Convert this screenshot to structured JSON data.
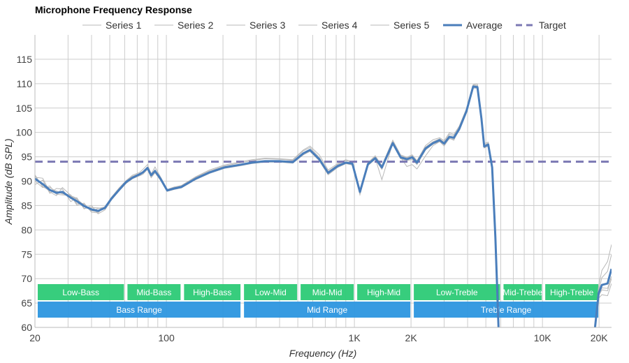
{
  "chart_data": {
    "type": "line",
    "title": "Microphone Frequency Response",
    "xlabel": "Frequency (Hz)",
    "ylabel": "Amplitude (dB SPL)",
    "xscale": "log",
    "xlim": [
      20,
      23300
    ],
    "ylim": [
      60,
      120
    ],
    "grid": true,
    "legend_position": "top",
    "x_ticks": [
      {
        "value": 20,
        "label": "20"
      },
      {
        "value": 100,
        "label": "100"
      },
      {
        "value": 1000,
        "label": "1K"
      },
      {
        "value": 2000,
        "label": "2K"
      },
      {
        "value": 10000,
        "label": "10K"
      },
      {
        "value": 20000,
        "label": "20K"
      }
    ],
    "x_minor_grid": [
      30,
      40,
      50,
      60,
      70,
      80,
      90,
      200,
      300,
      400,
      500,
      600,
      700,
      800,
      900,
      3000,
      4000,
      5000,
      6000,
      7000,
      8000,
      9000
    ],
    "y_ticks": [
      60,
      65,
      70,
      75,
      80,
      85,
      90,
      95,
      100,
      105,
      110,
      115
    ],
    "legend": [
      {
        "name": "Series 1",
        "style": "thin-gray"
      },
      {
        "name": "Series 2",
        "style": "thin-gray"
      },
      {
        "name": "Series 3",
        "style": "thin-gray"
      },
      {
        "name": "Series 4",
        "style": "thin-gray"
      },
      {
        "name": "Series 5",
        "style": "thin-gray"
      },
      {
        "name": "Average",
        "style": "thick-blue"
      },
      {
        "name": "Target",
        "style": "dashed-purple"
      }
    ],
    "colors": {
      "series": "#b8b8b8",
      "average": "#4a7ebb",
      "target": "#7b78b3",
      "grid": "#cccccc",
      "band_green": "#33cc7a",
      "band_blue": "#3399e0"
    },
    "target_level": 94,
    "average": {
      "x": [
        20,
        22,
        24,
        26,
        28,
        31,
        33.4,
        36.5,
        40,
        43.3,
        47.1,
        51,
        56,
        61,
        66,
        72,
        75,
        79.3,
        83,
        87,
        93,
        101,
        110,
        120,
        143,
        170,
        203,
        250,
        284,
        334,
        399,
        470,
        535,
        580,
        650,
        725,
        815,
        900,
        975,
        1070,
        1180,
        1290,
        1400,
        1600,
        1760,
        1900,
        2030,
        2150,
        2390,
        2620,
        2840,
        3000,
        3200,
        3380,
        3610,
        3940,
        4280,
        4510,
        4740,
        4900,
        5150,
        5400,
        5620,
        5860,
        18800,
        19900,
        20700,
        22200,
        23300
      ],
      "y": [
        90.5,
        89.4,
        88.2,
        87.6,
        87.8,
        86.6,
        85.9,
        84.9,
        84.2,
        83.9,
        84.5,
        86.4,
        88.2,
        89.8,
        90.7,
        91.4,
        91.8,
        92.7,
        91.2,
        92.1,
        90.5,
        88.1,
        88.5,
        88.8,
        90.5,
        91.8,
        92.8,
        93.4,
        93.8,
        94.1,
        94.1,
        93.9,
        95.7,
        96.4,
        94.5,
        91.7,
        93.1,
        93.8,
        93.6,
        87.8,
        93.5,
        94.7,
        92.8,
        97.8,
        94.9,
        94.5,
        94.9,
        93.8,
        96.7,
        97.8,
        98.4,
        97.7,
        99.1,
        98.9,
        100.7,
        104.3,
        109.4,
        109.3,
        102.8,
        97.1,
        97.5,
        92.8,
        78.5,
        58.4,
        58,
        67,
        68.7,
        69.0,
        72
      ]
    },
    "series": [
      {
        "name": "Series 1",
        "offsets": [
          0.8,
          -0.6,
          0.5,
          0.3,
          -0.4,
          0.6,
          -0.5,
          0.4,
          -0.3,
          0.5,
          0.2,
          0.3,
          0.4,
          0.3,
          0.5,
          0.4,
          0.6,
          0.7,
          0.3,
          0.8,
          0.4,
          0.2,
          0.3,
          0.3,
          0.4,
          0.5,
          0.5,
          0.6,
          0.6,
          0.6,
          0.5,
          0.5,
          0.7,
          0.8,
          0.9,
          0.6,
          0.5,
          0.6,
          0.4,
          -0.4,
          0.3,
          0.5,
          0.4,
          0.6,
          0.5,
          0.4,
          0.5,
          0.4,
          0.6,
          0.7,
          0.5,
          0.6,
          0.8,
          0.7,
          0.6,
          0.5,
          0.4,
          0.6,
          0.5,
          0.6,
          0.5,
          0.4,
          0.5,
          0.5,
          0.5,
          1.5,
          3.0,
          4.5,
          5.0
        ]
      },
      {
        "name": "Series 2",
        "offsets": [
          -1.2,
          0.8,
          -0.7,
          0.9,
          0.6,
          -0.8,
          0.7,
          -0.6,
          0.8,
          -0.6,
          -0.4,
          -0.3,
          -0.2,
          -0.3,
          -0.2,
          -0.3,
          -0.4,
          -0.3,
          -0.5,
          -0.4,
          -0.3,
          -0.2,
          -0.2,
          -0.2,
          -0.2,
          -0.2,
          -0.2,
          -0.2,
          -0.2,
          -0.2,
          -0.2,
          -0.2,
          -0.3,
          -0.3,
          -0.3,
          -0.4,
          -0.3,
          -0.2,
          -0.3,
          -0.6,
          -0.3,
          -0.2,
          -0.4,
          -0.2,
          -0.3,
          -0.3,
          -0.4,
          -0.4,
          -0.3,
          -0.2,
          -0.3,
          -0.2,
          -0.4,
          -0.3,
          -0.3,
          -0.3,
          -0.3,
          -0.3,
          -0.3,
          -0.3,
          -0.3,
          -0.3,
          -0.3,
          -0.3,
          -0.3,
          0.5,
          1.5,
          2.5,
          3.0
        ]
      },
      {
        "name": "Series 3",
        "offsets": [
          0.3,
          1.2,
          -0.4,
          -0.6,
          0.9,
          0.5,
          -0.8,
          0.6,
          -0.6,
          -0.4,
          0.3,
          0.2,
          0.3,
          0.2,
          0.3,
          0.2,
          0.1,
          0.2,
          0.2,
          0.1,
          0.2,
          0.1,
          0.2,
          0.2,
          0.3,
          0.3,
          0.3,
          0.4,
          0.4,
          0.5,
          0.4,
          0.4,
          0.5,
          0.5,
          0.4,
          0.3,
          0.3,
          0.4,
          0.3,
          -0.2,
          0.2,
          0.3,
          0.2,
          0.3,
          0.3,
          0.3,
          0.3,
          0.2,
          0.3,
          0.3,
          0.3,
          0.3,
          0.5,
          0.4,
          0.4,
          0.4,
          0.3,
          0.3,
          0.3,
          0.3,
          0.3,
          0.3,
          0.3,
          0.3,
          0.3,
          -0.5,
          -1.0,
          -1.5,
          -2.0
        ]
      },
      {
        "name": "Series 4",
        "offsets": [
          -0.5,
          -0.7,
          0.8,
          -0.3,
          -0.6,
          0.4,
          0.6,
          -0.5,
          0.4,
          0.6,
          -0.2,
          -0.1,
          -0.1,
          -0.1,
          -0.1,
          -0.2,
          -0.1,
          -0.1,
          -0.2,
          -0.1,
          -0.1,
          -0.1,
          -0.1,
          -0.1,
          -0.1,
          -0.1,
          -0.1,
          -0.1,
          -0.1,
          -0.1,
          -0.1,
          -0.1,
          -0.1,
          -0.1,
          -0.1,
          -0.2,
          -0.1,
          -0.1,
          -0.1,
          -0.2,
          -0.1,
          -0.1,
          -0.1,
          -0.1,
          -0.1,
          -0.1,
          -0.1,
          -0.1,
          -0.1,
          -0.1,
          -0.1,
          -0.1,
          -0.1,
          -0.1,
          -0.1,
          -0.1,
          -0.1,
          -0.1,
          -0.1,
          -0.1,
          -0.1,
          -0.1,
          -0.1,
          -0.1,
          -0.1,
          -1.0,
          -2.0,
          -2.5,
          -3.0
        ]
      },
      {
        "name": "Series 5",
        "offsets": [
          0.6,
          -0.5,
          -0.2,
          0.4,
          -0.3,
          0.3,
          0.4,
          0.2,
          -0.3,
          -0.2,
          0.1,
          0.1,
          0.0,
          0.1,
          0.0,
          0.1,
          0.1,
          0.2,
          0.1,
          0.2,
          0.1,
          0.0,
          0.0,
          0.0,
          0.0,
          0.0,
          0.0,
          0.0,
          0.0,
          0.0,
          0.0,
          0.0,
          0.0,
          0.0,
          0.0,
          0.0,
          0.0,
          0.0,
          0.0,
          -0.4,
          0.0,
          0.0,
          -2.5,
          0.0,
          0.0,
          -1.5,
          -1.5,
          -1.3,
          -1.5,
          -0.5,
          -0.3,
          -0.5,
          -0.3,
          -0.5,
          0.0,
          0.0,
          0.0,
          0.0,
          0.0,
          0.0,
          0.0,
          0.0,
          0.0,
          0.0,
          0.0,
          -0.3,
          -0.6,
          -1.0,
          -1.5
        ]
      }
    ],
    "bands": [
      {
        "label": "Low-Bass",
        "from": 20,
        "to": 60,
        "row": 1
      },
      {
        "label": "Mid-Bass",
        "from": 60,
        "to": 120,
        "row": 1
      },
      {
        "label": "High-Bass",
        "from": 120,
        "to": 250,
        "row": 1
      },
      {
        "label": "Low-Mid",
        "from": 250,
        "to": 500,
        "row": 1
      },
      {
        "label": "Mid-Mid",
        "from": 500,
        "to": 1000,
        "row": 1
      },
      {
        "label": "High-Mid",
        "from": 1000,
        "to": 2000,
        "row": 1
      },
      {
        "label": "Low-Treble",
        "from": 2000,
        "to": 6000,
        "row": 1
      },
      {
        "label": "Mid-Treble",
        "from": 6000,
        "to": 10000,
        "row": 1
      },
      {
        "label": "High-Treble",
        "from": 10000,
        "to": 20000,
        "row": 1
      },
      {
        "label": "Bass Range",
        "from": 20,
        "to": 250,
        "row": 2
      },
      {
        "label": "Mid Range",
        "from": 250,
        "to": 2000,
        "row": 2
      },
      {
        "label": "Treble Range",
        "from": 2000,
        "to": 20000,
        "row": 2
      }
    ]
  }
}
